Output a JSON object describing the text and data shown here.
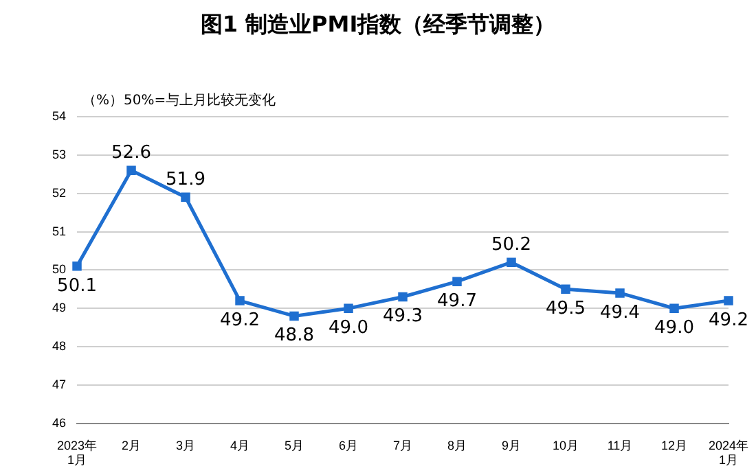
{
  "chart_data": {
    "type": "line",
    "title": "图1 制造业PMI指数（经季节调整）",
    "annotations": [
      "（%）",
      "50%=与上月比较无变化"
    ],
    "categories": [
      "2023年\n1月",
      "2月",
      "3月",
      "4月",
      "5月",
      "6月",
      "7月",
      "8月",
      "9月",
      "10月",
      "11月",
      "12月",
      "2024年\n1月"
    ],
    "series": [
      {
        "color": "#1f6fd0",
        "values": [
          50.1,
          52.6,
          51.9,
          49.2,
          48.8,
          49.0,
          49.3,
          49.7,
          50.2,
          49.5,
          49.4,
          49.0,
          49.2
        ],
        "value_labels": [
          "50.1",
          "52.6",
          "51.9",
          "49.2",
          "48.8",
          "49.0",
          "49.3",
          "49.7",
          "50.2",
          "49.5",
          "49.4",
          "49.0",
          "49.2"
        ]
      }
    ],
    "ylim": [
      46,
      54
    ],
    "yticks": [
      46,
      47,
      48,
      49,
      50,
      51,
      52,
      53,
      54
    ],
    "grid": "y",
    "marker": "square",
    "line_style": "solid",
    "legend": false
  }
}
